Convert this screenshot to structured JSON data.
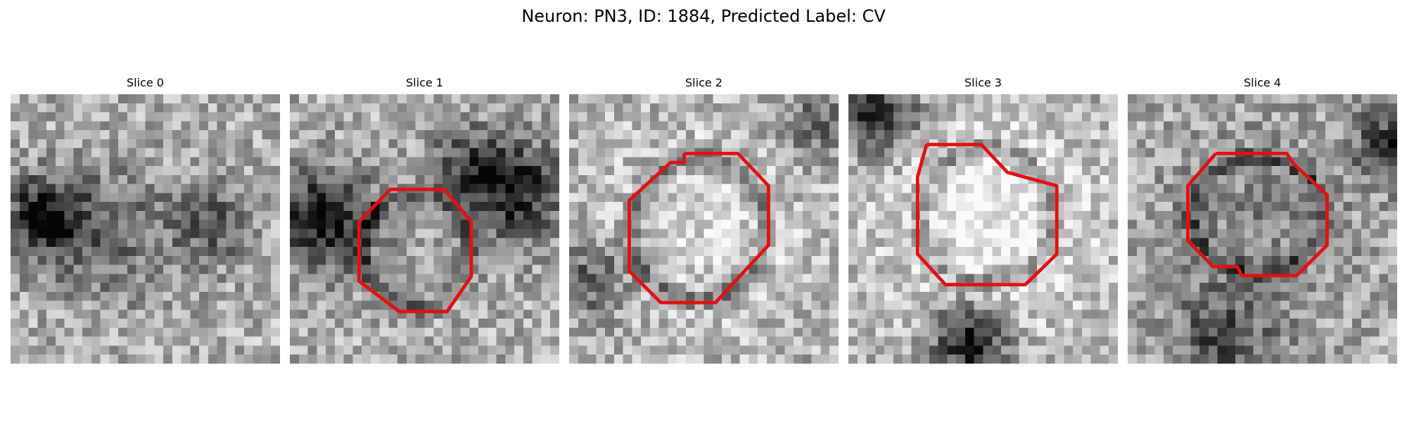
{
  "figure": {
    "title": "Neuron: PN3, ID: 1884, Predicted Label: CV"
  },
  "colors": {
    "outline": "#e31010",
    "background": "#ffffff"
  },
  "image_grid": {
    "pixels_per_side": 30,
    "colormap": "gray"
  },
  "slices": [
    {
      "title": "Slice 0",
      "has_outline": false,
      "outline": [],
      "dark_spots": [
        [
          3,
          13,
          3,
          0.55
        ],
        [
          22,
          14,
          3,
          0.35
        ],
        [
          10,
          15,
          5,
          0.3
        ]
      ]
    },
    {
      "title": "Slice 1",
      "has_outline": true,
      "outline": [
        [
          13.8,
          10.6
        ],
        [
          17.2,
          10.6
        ],
        [
          20.2,
          14.2
        ],
        [
          20.2,
          20.3
        ],
        [
          17.5,
          24.2
        ],
        [
          12.2,
          24.2
        ],
        [
          7.7,
          20.8
        ],
        [
          7.7,
          14.2
        ],
        [
          11.2,
          10.6
        ],
        [
          13.8,
          10.6
        ]
      ],
      "dark_spots": [
        [
          3.5,
          13.5,
          4,
          0.6
        ],
        [
          24.5,
          10.5,
          4,
          0.55
        ],
        [
          19,
          7,
          3,
          0.3
        ]
      ]
    },
    {
      "title": "Slice 2",
      "has_outline": true,
      "outline": [
        [
          12.8,
          6.6
        ],
        [
          18.8,
          6.6
        ],
        [
          22.2,
          10.2
        ],
        [
          22.2,
          16.8
        ],
        [
          16.3,
          23.2
        ],
        [
          10.2,
          23.2
        ],
        [
          6.7,
          19.7
        ],
        [
          6.7,
          11.8
        ],
        [
          11.3,
          7.6
        ],
        [
          12.8,
          7.6
        ],
        [
          12.8,
          6.6
        ]
      ],
      "dark_spots": [
        [
          14.5,
          14.5,
          9,
          -0.15
        ],
        [
          2,
          20,
          3,
          0.35
        ],
        [
          27,
          3,
          3,
          0.3
        ]
      ]
    },
    {
      "title": "Slice 3",
      "has_outline": true,
      "outline": [
        [
          8.7,
          5.6
        ],
        [
          14.8,
          5.6
        ],
        [
          17.7,
          8.7
        ],
        [
          23.2,
          10.2
        ],
        [
          23.2,
          17.8
        ],
        [
          19.7,
          21.2
        ],
        [
          10.8,
          21.2
        ],
        [
          7.7,
          17.8
        ],
        [
          7.7,
          9.2
        ],
        [
          8.7,
          5.6
        ]
      ],
      "dark_spots": [
        [
          3,
          2,
          3,
          0.55
        ],
        [
          13,
          27,
          3,
          0.65
        ],
        [
          15.5,
          13.5,
          8.5,
          -0.3
        ]
      ]
    },
    {
      "title": "Slice 4",
      "has_outline": true,
      "outline": [
        [
          9.8,
          6.6
        ],
        [
          17.7,
          6.6
        ],
        [
          18.5,
          7.8
        ],
        [
          22.2,
          11.2
        ],
        [
          22.2,
          16.8
        ],
        [
          18.8,
          20.2
        ],
        [
          12.7,
          20.2
        ],
        [
          12.2,
          19.2
        ],
        [
          9.5,
          19.2
        ],
        [
          6.7,
          16.3
        ],
        [
          6.7,
          10.2
        ],
        [
          9.8,
          6.6
        ]
      ],
      "dark_spots": [
        [
          29,
          5,
          3,
          0.45
        ],
        [
          10,
          27,
          4,
          0.35
        ],
        [
          14,
          14,
          8,
          0.15
        ]
      ]
    }
  ]
}
